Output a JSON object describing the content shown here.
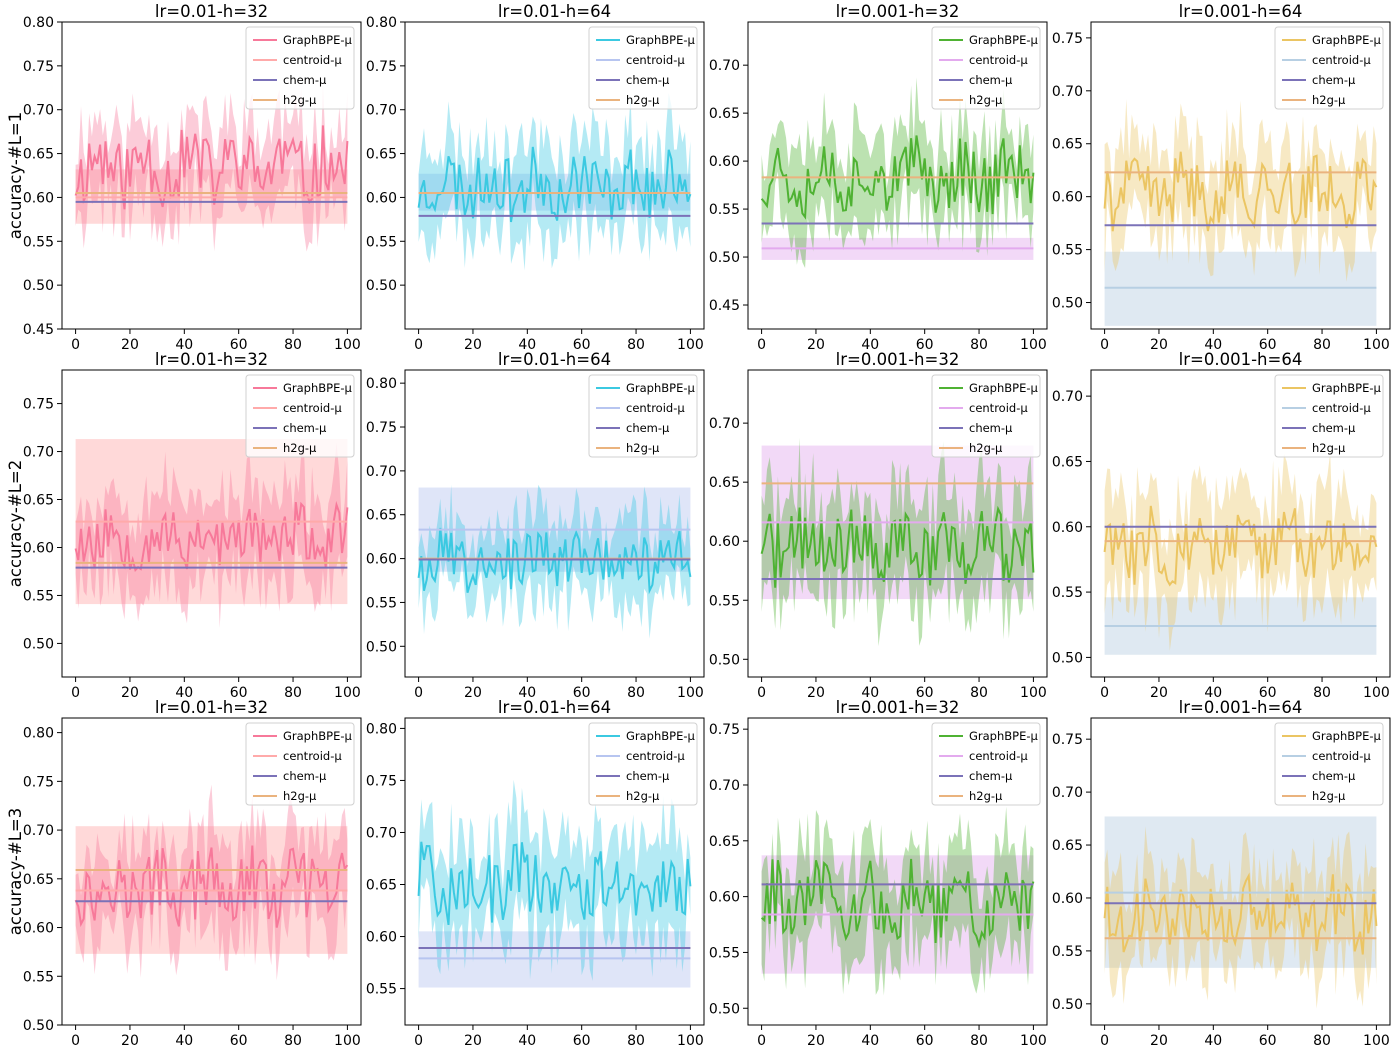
{
  "figure": {
    "row_ylabels": [
      "accuracy-#L=1",
      "accuracy-#L=2",
      "accuracy-#L=3"
    ],
    "col_titles": [
      "lr=0.01-h=32",
      "lr=0.01-h=64",
      "lr=0.001-h=32",
      "lr=0.001-h=64"
    ],
    "legend_labels": [
      "GraphBPE-μ",
      "centroid-μ",
      "chem-μ",
      "h2g-μ"
    ],
    "colors": {
      "graphbpe": [
        "#f7799a",
        "#3bc9e1",
        "#4fb233",
        "#ebc563"
      ],
      "centroid": [
        "#ffaaaa",
        "#b7c5f0",
        "#e3aaee",
        "#b7cfe3"
      ],
      "chem": "#7b72b8",
      "h2g": "#eab37e"
    },
    "x_ticks": [
      0,
      20,
      40,
      60,
      80,
      100
    ]
  },
  "chart_data": [
    {
      "type": "line",
      "row": 0,
      "col": 0,
      "title": "lr=0.01-h=32",
      "ylabel": "accuracy-#L=1",
      "xlim": [
        -5,
        105
      ],
      "ylim": [
        0.45,
        0.8
      ],
      "y_ticks": [
        0.45,
        0.5,
        0.55,
        0.6,
        0.65,
        0.7,
        0.75,
        0.8
      ],
      "y_tick_labels": [
        "0.45",
        "0.50",
        "0.55",
        "0.60",
        "0.65",
        "0.70",
        "0.75",
        "0.80"
      ],
      "graphbpe": {
        "mean": 0.635,
        "amp": 0.04,
        "band": 0.05,
        "seed": 11
      },
      "centroid": {
        "mean": 0.6,
        "low": 0.57,
        "high": 0.632
      },
      "chem": {
        "mean": 0.595
      },
      "h2g": {
        "mean": 0.605
      }
    },
    {
      "type": "line",
      "row": 0,
      "col": 1,
      "title": "lr=0.01-h=64",
      "ylabel": "",
      "xlim": [
        -5,
        105
      ],
      "ylim": [
        0.45,
        0.8
      ],
      "y_ticks": [
        0.5,
        0.55,
        0.6,
        0.65,
        0.7,
        0.75,
        0.8
      ],
      "y_tick_labels": [
        "0.50",
        "0.55",
        "0.60",
        "0.65",
        "0.70",
        "0.75",
        "0.80"
      ],
      "graphbpe": {
        "mean": 0.615,
        "amp": 0.035,
        "band": 0.05,
        "seed": 23
      },
      "centroid": {
        "mean": 0.605,
        "low": 0.585,
        "high": 0.627
      },
      "chem": {
        "mean": 0.579
      },
      "h2g": {
        "mean": 0.605
      }
    },
    {
      "type": "line",
      "row": 0,
      "col": 2,
      "title": "lr=0.001-h=32",
      "ylabel": "",
      "xlim": [
        -5,
        105
      ],
      "ylim": [
        0.425,
        0.745
      ],
      "y_ticks": [
        0.45,
        0.5,
        0.55,
        0.6,
        0.65,
        0.7
      ],
      "y_tick_labels": [
        "0.45",
        "0.50",
        "0.55",
        "0.60",
        "0.65",
        "0.70"
      ],
      "graphbpe": {
        "mean": 0.585,
        "amp": 0.035,
        "band": 0.045,
        "seed": 37
      },
      "centroid": {
        "mean": 0.509,
        "low": 0.497,
        "high": 0.52
      },
      "chem": {
        "mean": 0.535
      },
      "h2g": {
        "mean": 0.583
      }
    },
    {
      "type": "line",
      "row": 0,
      "col": 3,
      "title": "lr=0.001-h=64",
      "ylabel": "",
      "xlim": [
        -5,
        105
      ],
      "ylim": [
        0.475,
        0.765
      ],
      "y_ticks": [
        0.5,
        0.55,
        0.6,
        0.65,
        0.7,
        0.75
      ],
      "y_tick_labels": [
        "0.50",
        "0.55",
        "0.60",
        "0.65",
        "0.70",
        "0.75"
      ],
      "graphbpe": {
        "mean": 0.605,
        "amp": 0.03,
        "band": 0.045,
        "seed": 41
      },
      "centroid": {
        "mean": 0.514,
        "low": 0.478,
        "high": 0.548
      },
      "chem": {
        "mean": 0.573
      },
      "h2g": {
        "mean": 0.623
      }
    },
    {
      "type": "line",
      "row": 1,
      "col": 0,
      "title": "lr=0.01-h=32",
      "ylabel": "accuracy-#L=2",
      "xlim": [
        -5,
        105
      ],
      "ylim": [
        0.465,
        0.785
      ],
      "y_ticks": [
        0.5,
        0.55,
        0.6,
        0.65,
        0.7,
        0.75
      ],
      "y_tick_labels": [
        "0.50",
        "0.55",
        "0.60",
        "0.65",
        "0.70",
        "0.75"
      ],
      "graphbpe": {
        "mean": 0.61,
        "amp": 0.03,
        "band": 0.05,
        "seed": 53
      },
      "centroid": {
        "mean": 0.627,
        "low": 0.541,
        "high": 0.713
      },
      "chem": {
        "mean": 0.579
      },
      "h2g": {
        "mean": 0.584
      }
    },
    {
      "type": "line",
      "row": 1,
      "col": 1,
      "title": "lr=0.01-h=64",
      "ylabel": "",
      "xlim": [
        -5,
        105
      ],
      "ylim": [
        0.465,
        0.815
      ],
      "y_ticks": [
        0.5,
        0.55,
        0.6,
        0.65,
        0.7,
        0.75,
        0.8
      ],
      "y_tick_labels": [
        "0.50",
        "0.55",
        "0.60",
        "0.65",
        "0.70",
        "0.75",
        "0.80"
      ],
      "graphbpe": {
        "mean": 0.6,
        "amp": 0.03,
        "band": 0.045,
        "seed": 67
      },
      "centroid": {
        "mean": 0.633,
        "low": 0.585,
        "high": 0.681
      },
      "chem": {
        "mean": 0.599
      },
      "h2g": {
        "mean": 0.6
      }
    },
    {
      "type": "line",
      "row": 1,
      "col": 2,
      "title": "lr=0.001-h=32",
      "ylabel": "",
      "xlim": [
        -5,
        105
      ],
      "ylim": [
        0.485,
        0.745
      ],
      "y_ticks": [
        0.5,
        0.55,
        0.6,
        0.65,
        0.7
      ],
      "y_tick_labels": [
        "0.50",
        "0.55",
        "0.60",
        "0.65",
        "0.70"
      ],
      "graphbpe": {
        "mean": 0.595,
        "amp": 0.03,
        "band": 0.045,
        "seed": 71
      },
      "centroid": {
        "mean": 0.616,
        "low": 0.551,
        "high": 0.681
      },
      "chem": {
        "mean": 0.568
      },
      "h2g": {
        "mean": 0.649
      }
    },
    {
      "type": "line",
      "row": 1,
      "col": 3,
      "title": "lr=0.001-h=64",
      "ylabel": "",
      "xlim": [
        -5,
        105
      ],
      "ylim": [
        0.485,
        0.72
      ],
      "y_ticks": [
        0.5,
        0.55,
        0.6,
        0.65,
        0.7
      ],
      "y_tick_labels": [
        "0.50",
        "0.55",
        "0.60",
        "0.65",
        "0.70"
      ],
      "graphbpe": {
        "mean": 0.585,
        "amp": 0.025,
        "band": 0.04,
        "seed": 83
      },
      "centroid": {
        "mean": 0.524,
        "low": 0.502,
        "high": 0.546
      },
      "chem": {
        "mean": 0.6
      },
      "h2g": {
        "mean": 0.589
      }
    },
    {
      "type": "line",
      "row": 2,
      "col": 0,
      "title": "lr=0.01-h=32",
      "ylabel": "accuracy-#L=3",
      "xlim": [
        -5,
        105
      ],
      "ylim": [
        0.5,
        0.815
      ],
      "y_ticks": [
        0.5,
        0.55,
        0.6,
        0.65,
        0.7,
        0.75,
        0.8
      ],
      "y_tick_labels": [
        "0.50",
        "0.55",
        "0.60",
        "0.65",
        "0.70",
        "0.75",
        "0.80"
      ],
      "graphbpe": {
        "mean": 0.64,
        "amp": 0.035,
        "band": 0.05,
        "seed": 97
      },
      "centroid": {
        "mean": 0.638,
        "low": 0.573,
        "high": 0.704
      },
      "chem": {
        "mean": 0.627
      },
      "h2g": {
        "mean": 0.659
      }
    },
    {
      "type": "line",
      "row": 2,
      "col": 1,
      "title": "lr=0.01-h=64",
      "ylabel": "",
      "xlim": [
        -5,
        105
      ],
      "ylim": [
        0.515,
        0.81
      ],
      "y_ticks": [
        0.55,
        0.6,
        0.65,
        0.7,
        0.75,
        0.8
      ],
      "y_tick_labels": [
        "0.55",
        "0.60",
        "0.65",
        "0.70",
        "0.75",
        "0.80"
      ],
      "graphbpe": {
        "mean": 0.65,
        "amp": 0.035,
        "band": 0.05,
        "seed": 101
      },
      "centroid": {
        "mean": 0.579,
        "low": 0.551,
        "high": 0.605
      },
      "chem": {
        "mean": 0.589
      },
      "h2g": {
        "mean": 0.589
      }
    },
    {
      "type": "line",
      "row": 2,
      "col": 2,
      "title": "lr=0.001-h=32",
      "ylabel": "",
      "xlim": [
        -5,
        105
      ],
      "ylim": [
        0.485,
        0.76
      ],
      "y_ticks": [
        0.5,
        0.55,
        0.6,
        0.65,
        0.7,
        0.75
      ],
      "y_tick_labels": [
        "0.50",
        "0.55",
        "0.60",
        "0.65",
        "0.70",
        "0.75"
      ],
      "graphbpe": {
        "mean": 0.595,
        "amp": 0.03,
        "band": 0.045,
        "seed": 113
      },
      "centroid": {
        "mean": 0.584,
        "low": 0.531,
        "high": 0.637
      },
      "chem": {
        "mean": 0.611
      },
      "h2g": {
        "mean": 0.611
      }
    },
    {
      "type": "line",
      "row": 2,
      "col": 3,
      "title": "lr=0.001-h=64",
      "ylabel": "",
      "xlim": [
        -5,
        105
      ],
      "ylim": [
        0.48,
        0.77
      ],
      "y_ticks": [
        0.5,
        0.55,
        0.6,
        0.65,
        0.7,
        0.75
      ],
      "y_tick_labels": [
        "0.50",
        "0.55",
        "0.60",
        "0.65",
        "0.70",
        "0.75"
      ],
      "graphbpe": {
        "mean": 0.585,
        "amp": 0.03,
        "band": 0.045,
        "seed": 127
      },
      "centroid": {
        "mean": 0.605,
        "low": 0.534,
        "high": 0.677
      },
      "chem": {
        "mean": 0.595
      },
      "h2g": {
        "mean": 0.562
      }
    }
  ]
}
